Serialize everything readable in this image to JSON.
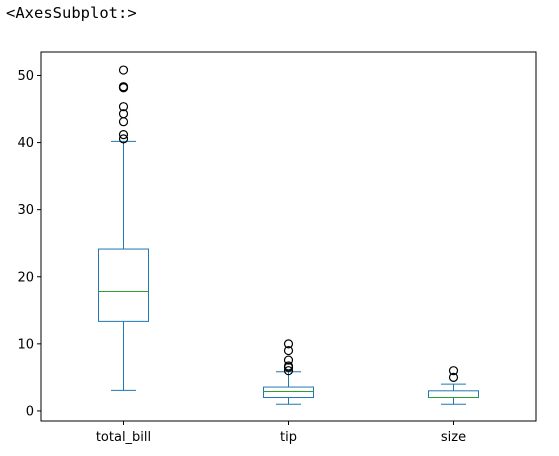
{
  "output_repr": "<AxesSubplot:>",
  "chart_data": {
    "type": "box",
    "categories": [
      "total_bill",
      "tip",
      "size"
    ],
    "ylim": [
      -1.5,
      53.5
    ],
    "yticks": [
      0,
      10,
      20,
      30,
      40,
      50
    ],
    "grid": false,
    "colors": {
      "box": "#1f77b4",
      "median": "#2ca02c",
      "flier": "#000000"
    },
    "series": [
      {
        "name": "total_bill",
        "whisker_low": 3.07,
        "q1": 13.35,
        "median": 17.8,
        "q3": 24.13,
        "whisker_high": 40.17,
        "fliers": [
          40.55,
          41.19,
          43.11,
          44.3,
          45.35,
          48.17,
          48.27,
          48.33,
          50.81
        ]
      },
      {
        "name": "tip",
        "whisker_low": 1.0,
        "q1": 2.0,
        "median": 2.9,
        "q3": 3.56,
        "whisker_high": 5.85,
        "fliers": [
          6.0,
          6.5,
          6.7,
          7.58,
          9.0,
          10.0
        ]
      },
      {
        "name": "size",
        "whisker_low": 1.0,
        "q1": 2.0,
        "median": 2.0,
        "q3": 3.0,
        "whisker_high": 4.0,
        "fliers": [
          5.0,
          6.0
        ]
      }
    ]
  }
}
